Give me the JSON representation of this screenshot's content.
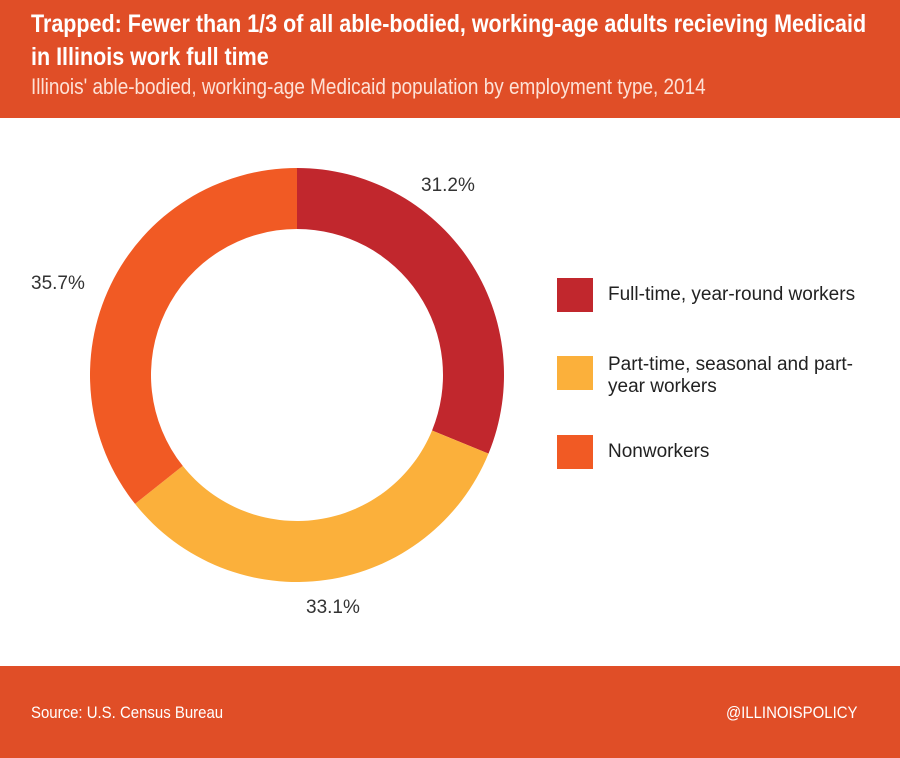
{
  "header": {
    "title": "Trapped: Fewer than 1/3 of all able-bodied, working-age adults recieving Medicaid in Illinois work full time",
    "subtitle": "Illinois' able-bodied, working-age Medicaid population by employment type, 2014"
  },
  "footer": {
    "source": "Source: U.S. Census Bureau",
    "handle": "@ILLINOISPOLICY"
  },
  "colors": {
    "banner": "#e04e27",
    "background": "#ffffff"
  },
  "chart_data": {
    "type": "pie",
    "variant": "donut",
    "title": "Trapped: Fewer than 1/3 of all able-bodied, working-age adults recieving Medicaid in Illinois work full time",
    "subtitle": "Illinois' able-bodied, working-age Medicaid population by employment type, 2014",
    "legend_placement": "right",
    "slices": [
      {
        "label": "Full-time, year-round workers",
        "value": 31.2,
        "value_label": "31.2%",
        "color": "#c1272d"
      },
      {
        "label": "Part-time, seasonal and part-year workers",
        "value": 33.1,
        "value_label": "33.1%",
        "color": "#fbb03b"
      },
      {
        "label": "Nonworkers",
        "value": 35.7,
        "value_label": "35.7%",
        "color": "#f15a24"
      }
    ]
  }
}
